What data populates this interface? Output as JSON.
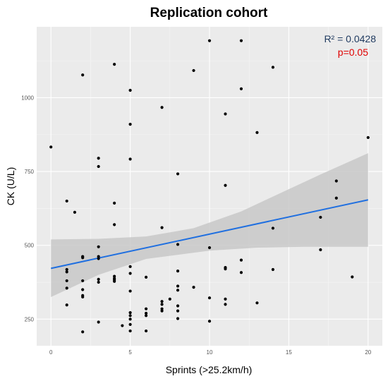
{
  "chart_data": {
    "type": "scatter",
    "title": "Replication cohort",
    "xlabel": "Sprints (>25.2km/h)",
    "ylabel": "CK (U/L)",
    "xlim": [
      -0.9,
      20.9
    ],
    "ylim": [
      160,
      1240
    ],
    "xticks": [
      0,
      5,
      10,
      15,
      20
    ],
    "yticks": [
      250,
      500,
      750,
      1000
    ],
    "xtick_labels": [
      "0",
      "5",
      "10",
      "15",
      "20"
    ],
    "ytick_labels": [
      "250",
      "500",
      "750",
      "1000"
    ],
    "grid": true,
    "background": "#ebebeb",
    "point_color": "#000000",
    "regression": {
      "x": [
        0,
        20
      ],
      "y": [
        422,
        654
      ],
      "color": "#1f6fe0",
      "ci_color": "#c8c8c8",
      "ci_lower": [
        [
          0,
          325
        ],
        [
          3,
          400
        ],
        [
          6,
          454
        ],
        [
          10,
          482
        ],
        [
          13,
          492
        ],
        [
          16,
          495
        ],
        [
          20,
          495
        ]
      ],
      "ci_upper": [
        [
          0,
          520
        ],
        [
          3,
          522
        ],
        [
          6,
          530
        ],
        [
          9,
          558
        ],
        [
          12,
          615
        ],
        [
          15,
          690
        ],
        [
          17,
          740
        ],
        [
          20,
          812
        ]
      ]
    },
    "annotations": {
      "r2": "R² = 0.0428",
      "p": "p=0.05",
      "r2_color": "#1f3a5f",
      "p_color": "#e00000"
    },
    "points": [
      [
        0,
        833
      ],
      [
        1,
        650
      ],
      [
        1,
        418
      ],
      [
        1,
        410
      ],
      [
        1,
        380
      ],
      [
        1,
        355
      ],
      [
        1,
        298
      ],
      [
        1.5,
        612
      ],
      [
        2,
        1077
      ],
      [
        2,
        462
      ],
      [
        2,
        458
      ],
      [
        2,
        380
      ],
      [
        2,
        350
      ],
      [
        2,
        330
      ],
      [
        2,
        325
      ],
      [
        2,
        207
      ],
      [
        3,
        795
      ],
      [
        3,
        767
      ],
      [
        3,
        495
      ],
      [
        3,
        462
      ],
      [
        3,
        455
      ],
      [
        3,
        385
      ],
      [
        3,
        375
      ],
      [
        3,
        240
      ],
      [
        4,
        1113
      ],
      [
        4,
        643
      ],
      [
        4,
        570
      ],
      [
        4,
        395
      ],
      [
        4,
        388
      ],
      [
        4,
        383
      ],
      [
        4,
        378
      ],
      [
        4.5,
        228
      ],
      [
        5,
        1025
      ],
      [
        5,
        910
      ],
      [
        5,
        792
      ],
      [
        5,
        428
      ],
      [
        5,
        405
      ],
      [
        5,
        345
      ],
      [
        5,
        272
      ],
      [
        5,
        262
      ],
      [
        5,
        250
      ],
      [
        5,
        232
      ],
      [
        5,
        210
      ],
      [
        6,
        392
      ],
      [
        6,
        285
      ],
      [
        6,
        270
      ],
      [
        6,
        262
      ],
      [
        6,
        210
      ],
      [
        7,
        967
      ],
      [
        7,
        560
      ],
      [
        7,
        310
      ],
      [
        7,
        300
      ],
      [
        7,
        285
      ],
      [
        7,
        278
      ],
      [
        7.5,
        318
      ],
      [
        8,
        742
      ],
      [
        8,
        503
      ],
      [
        8,
        413
      ],
      [
        8,
        362
      ],
      [
        8,
        348
      ],
      [
        8,
        295
      ],
      [
        8,
        278
      ],
      [
        8,
        252
      ],
      [
        9,
        1092
      ],
      [
        9,
        358
      ],
      [
        10,
        1193
      ],
      [
        10,
        492
      ],
      [
        10,
        322
      ],
      [
        10,
        243
      ],
      [
        11,
        945
      ],
      [
        11,
        703
      ],
      [
        11,
        425
      ],
      [
        11,
        420
      ],
      [
        11,
        318
      ],
      [
        11,
        300
      ],
      [
        12,
        1193
      ],
      [
        12,
        1030
      ],
      [
        12,
        450
      ],
      [
        12,
        408
      ],
      [
        13,
        882
      ],
      [
        13,
        305
      ],
      [
        14,
        1103
      ],
      [
        14,
        558
      ],
      [
        14,
        418
      ],
      [
        17,
        595
      ],
      [
        17,
        485
      ],
      [
        18,
        718
      ],
      [
        18,
        660
      ],
      [
        19,
        393
      ],
      [
        20,
        865
      ]
    ]
  }
}
